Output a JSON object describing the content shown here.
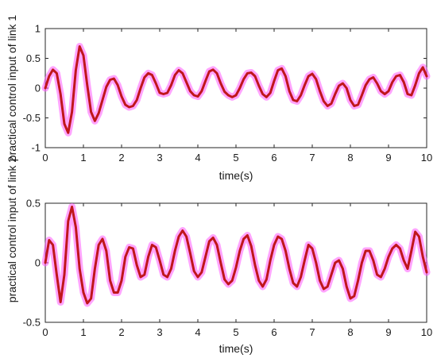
{
  "chart_data": [
    {
      "type": "line",
      "xlabel": "time(s)",
      "ylabel": "practical control input of link 1",
      "xlim": [
        0,
        10
      ],
      "ylim": [
        -1,
        1
      ],
      "xticks": [
        "0",
        "1",
        "2",
        "3",
        "4",
        "5",
        "6",
        "7",
        "8",
        "9",
        "10"
      ],
      "yticks": [
        "-1",
        "-0.5",
        "0",
        "0.5",
        "1"
      ],
      "grid": false,
      "series": [
        {
          "color": "#c0161b",
          "band_color": "#ff5aff",
          "x": [
            0,
            0.1,
            0.2,
            0.3,
            0.4,
            0.5,
            0.6,
            0.7,
            0.8,
            0.9,
            1.0,
            1.1,
            1.2,
            1.3,
            1.4,
            1.5,
            1.6,
            1.7,
            1.8,
            1.9,
            2.0,
            2.1,
            2.2,
            2.3,
            2.4,
            2.5,
            2.6,
            2.7,
            2.8,
            2.9,
            3.0,
            3.1,
            3.2,
            3.3,
            3.4,
            3.5,
            3.6,
            3.7,
            3.8,
            3.9,
            4.0,
            4.1,
            4.2,
            4.3,
            4.4,
            4.5,
            4.6,
            4.7,
            4.8,
            4.9,
            5.0,
            5.1,
            5.2,
            5.3,
            5.4,
            5.5,
            5.6,
            5.7,
            5.8,
            5.9,
            6.0,
            6.1,
            6.2,
            6.3,
            6.4,
            6.5,
            6.6,
            6.7,
            6.8,
            6.9,
            7.0,
            7.1,
            7.2,
            7.3,
            7.4,
            7.5,
            7.6,
            7.7,
            7.8,
            7.9,
            8.0,
            8.1,
            8.2,
            8.3,
            8.4,
            8.5,
            8.6,
            8.7,
            8.8,
            8.9,
            9.0,
            9.1,
            9.2,
            9.3,
            9.4,
            9.5,
            9.6,
            9.7,
            9.8,
            9.9,
            10.0
          ],
          "y": [
            0.0,
            0.2,
            0.31,
            0.25,
            -0.1,
            -0.6,
            -0.75,
            -0.4,
            0.3,
            0.7,
            0.55,
            0.05,
            -0.4,
            -0.55,
            -0.42,
            -0.2,
            0.02,
            0.14,
            0.16,
            0.05,
            -0.14,
            -0.28,
            -0.32,
            -0.3,
            -0.2,
            0.0,
            0.18,
            0.25,
            0.22,
            0.08,
            -0.08,
            -0.1,
            -0.08,
            0.05,
            0.22,
            0.3,
            0.25,
            0.1,
            -0.05,
            -0.12,
            -0.14,
            -0.05,
            0.12,
            0.28,
            0.31,
            0.25,
            0.08,
            -0.06,
            -0.12,
            -0.15,
            -0.12,
            0.0,
            0.15,
            0.25,
            0.26,
            0.2,
            0.04,
            -0.1,
            -0.15,
            -0.08,
            0.12,
            0.3,
            0.33,
            0.2,
            -0.05,
            -0.2,
            -0.22,
            -0.12,
            0.05,
            0.2,
            0.24,
            0.15,
            -0.05,
            -0.22,
            -0.3,
            -0.26,
            -0.1,
            0.04,
            0.08,
            0.0,
            -0.2,
            -0.3,
            -0.28,
            -0.12,
            0.05,
            0.15,
            0.18,
            0.08,
            -0.05,
            -0.1,
            -0.05,
            0.1,
            0.2,
            0.22,
            0.1,
            -0.1,
            -0.12,
            0.05,
            0.25,
            0.35,
            0.2
          ]
        }
      ]
    },
    {
      "type": "line",
      "xlabel": "time(s)",
      "ylabel": "practical control input of link 2",
      "xlim": [
        0,
        10
      ],
      "ylim": [
        -0.5,
        0.5
      ],
      "xticks": [
        "0",
        "1",
        "2",
        "3",
        "4",
        "5",
        "6",
        "7",
        "8",
        "9",
        "10"
      ],
      "yticks": [
        "-0.5",
        "0",
        "0.5"
      ],
      "grid": false,
      "series": [
        {
          "color": "#c0161b",
          "band_color": "#ff5aff",
          "x": [
            0,
            0.1,
            0.2,
            0.3,
            0.4,
            0.5,
            0.6,
            0.7,
            0.8,
            0.9,
            1.0,
            1.1,
            1.2,
            1.3,
            1.4,
            1.5,
            1.6,
            1.7,
            1.8,
            1.9,
            2.0,
            2.1,
            2.2,
            2.3,
            2.4,
            2.5,
            2.6,
            2.7,
            2.8,
            2.9,
            3.0,
            3.1,
            3.2,
            3.3,
            3.4,
            3.5,
            3.6,
            3.7,
            3.8,
            3.9,
            4.0,
            4.1,
            4.2,
            4.3,
            4.4,
            4.5,
            4.6,
            4.7,
            4.8,
            4.9,
            5.0,
            5.1,
            5.2,
            5.3,
            5.4,
            5.5,
            5.6,
            5.7,
            5.8,
            5.9,
            6.0,
            6.1,
            6.2,
            6.3,
            6.4,
            6.5,
            6.6,
            6.7,
            6.8,
            6.9,
            7.0,
            7.1,
            7.2,
            7.3,
            7.4,
            7.5,
            7.6,
            7.7,
            7.8,
            7.9,
            8.0,
            8.1,
            8.2,
            8.3,
            8.4,
            8.5,
            8.6,
            8.7,
            8.8,
            8.9,
            9.0,
            9.1,
            9.2,
            9.3,
            9.4,
            9.5,
            9.6,
            9.7,
            9.8,
            9.9,
            10.0
          ],
          "y": [
            0.0,
            0.19,
            0.15,
            -0.1,
            -0.33,
            -0.1,
            0.35,
            0.47,
            0.3,
            -0.05,
            -0.25,
            -0.34,
            -0.3,
            -0.05,
            0.15,
            0.2,
            0.1,
            -0.15,
            -0.25,
            -0.25,
            -0.15,
            0.05,
            0.13,
            0.12,
            -0.02,
            -0.12,
            -0.1,
            0.05,
            0.15,
            0.13,
            0.02,
            -0.1,
            -0.12,
            -0.05,
            0.1,
            0.22,
            0.27,
            0.22,
            0.08,
            -0.07,
            -0.12,
            -0.08,
            0.05,
            0.18,
            0.21,
            0.15,
            0.0,
            -0.14,
            -0.18,
            -0.15,
            -0.04,
            0.1,
            0.2,
            0.23,
            0.14,
            -0.02,
            -0.15,
            -0.2,
            -0.14,
            0.02,
            0.15,
            0.22,
            0.2,
            0.1,
            -0.05,
            -0.17,
            -0.2,
            -0.12,
            0.02,
            0.15,
            0.12,
            0.0,
            -0.15,
            -0.22,
            -0.2,
            -0.1,
            0.0,
            0.02,
            -0.05,
            -0.2,
            -0.3,
            -0.28,
            -0.15,
            0.0,
            0.1,
            0.1,
            0.02,
            -0.1,
            -0.12,
            -0.05,
            0.05,
            0.12,
            0.15,
            0.12,
            0.02,
            -0.05,
            0.1,
            0.26,
            0.22,
            0.05,
            -0.08
          ]
        }
      ]
    }
  ]
}
